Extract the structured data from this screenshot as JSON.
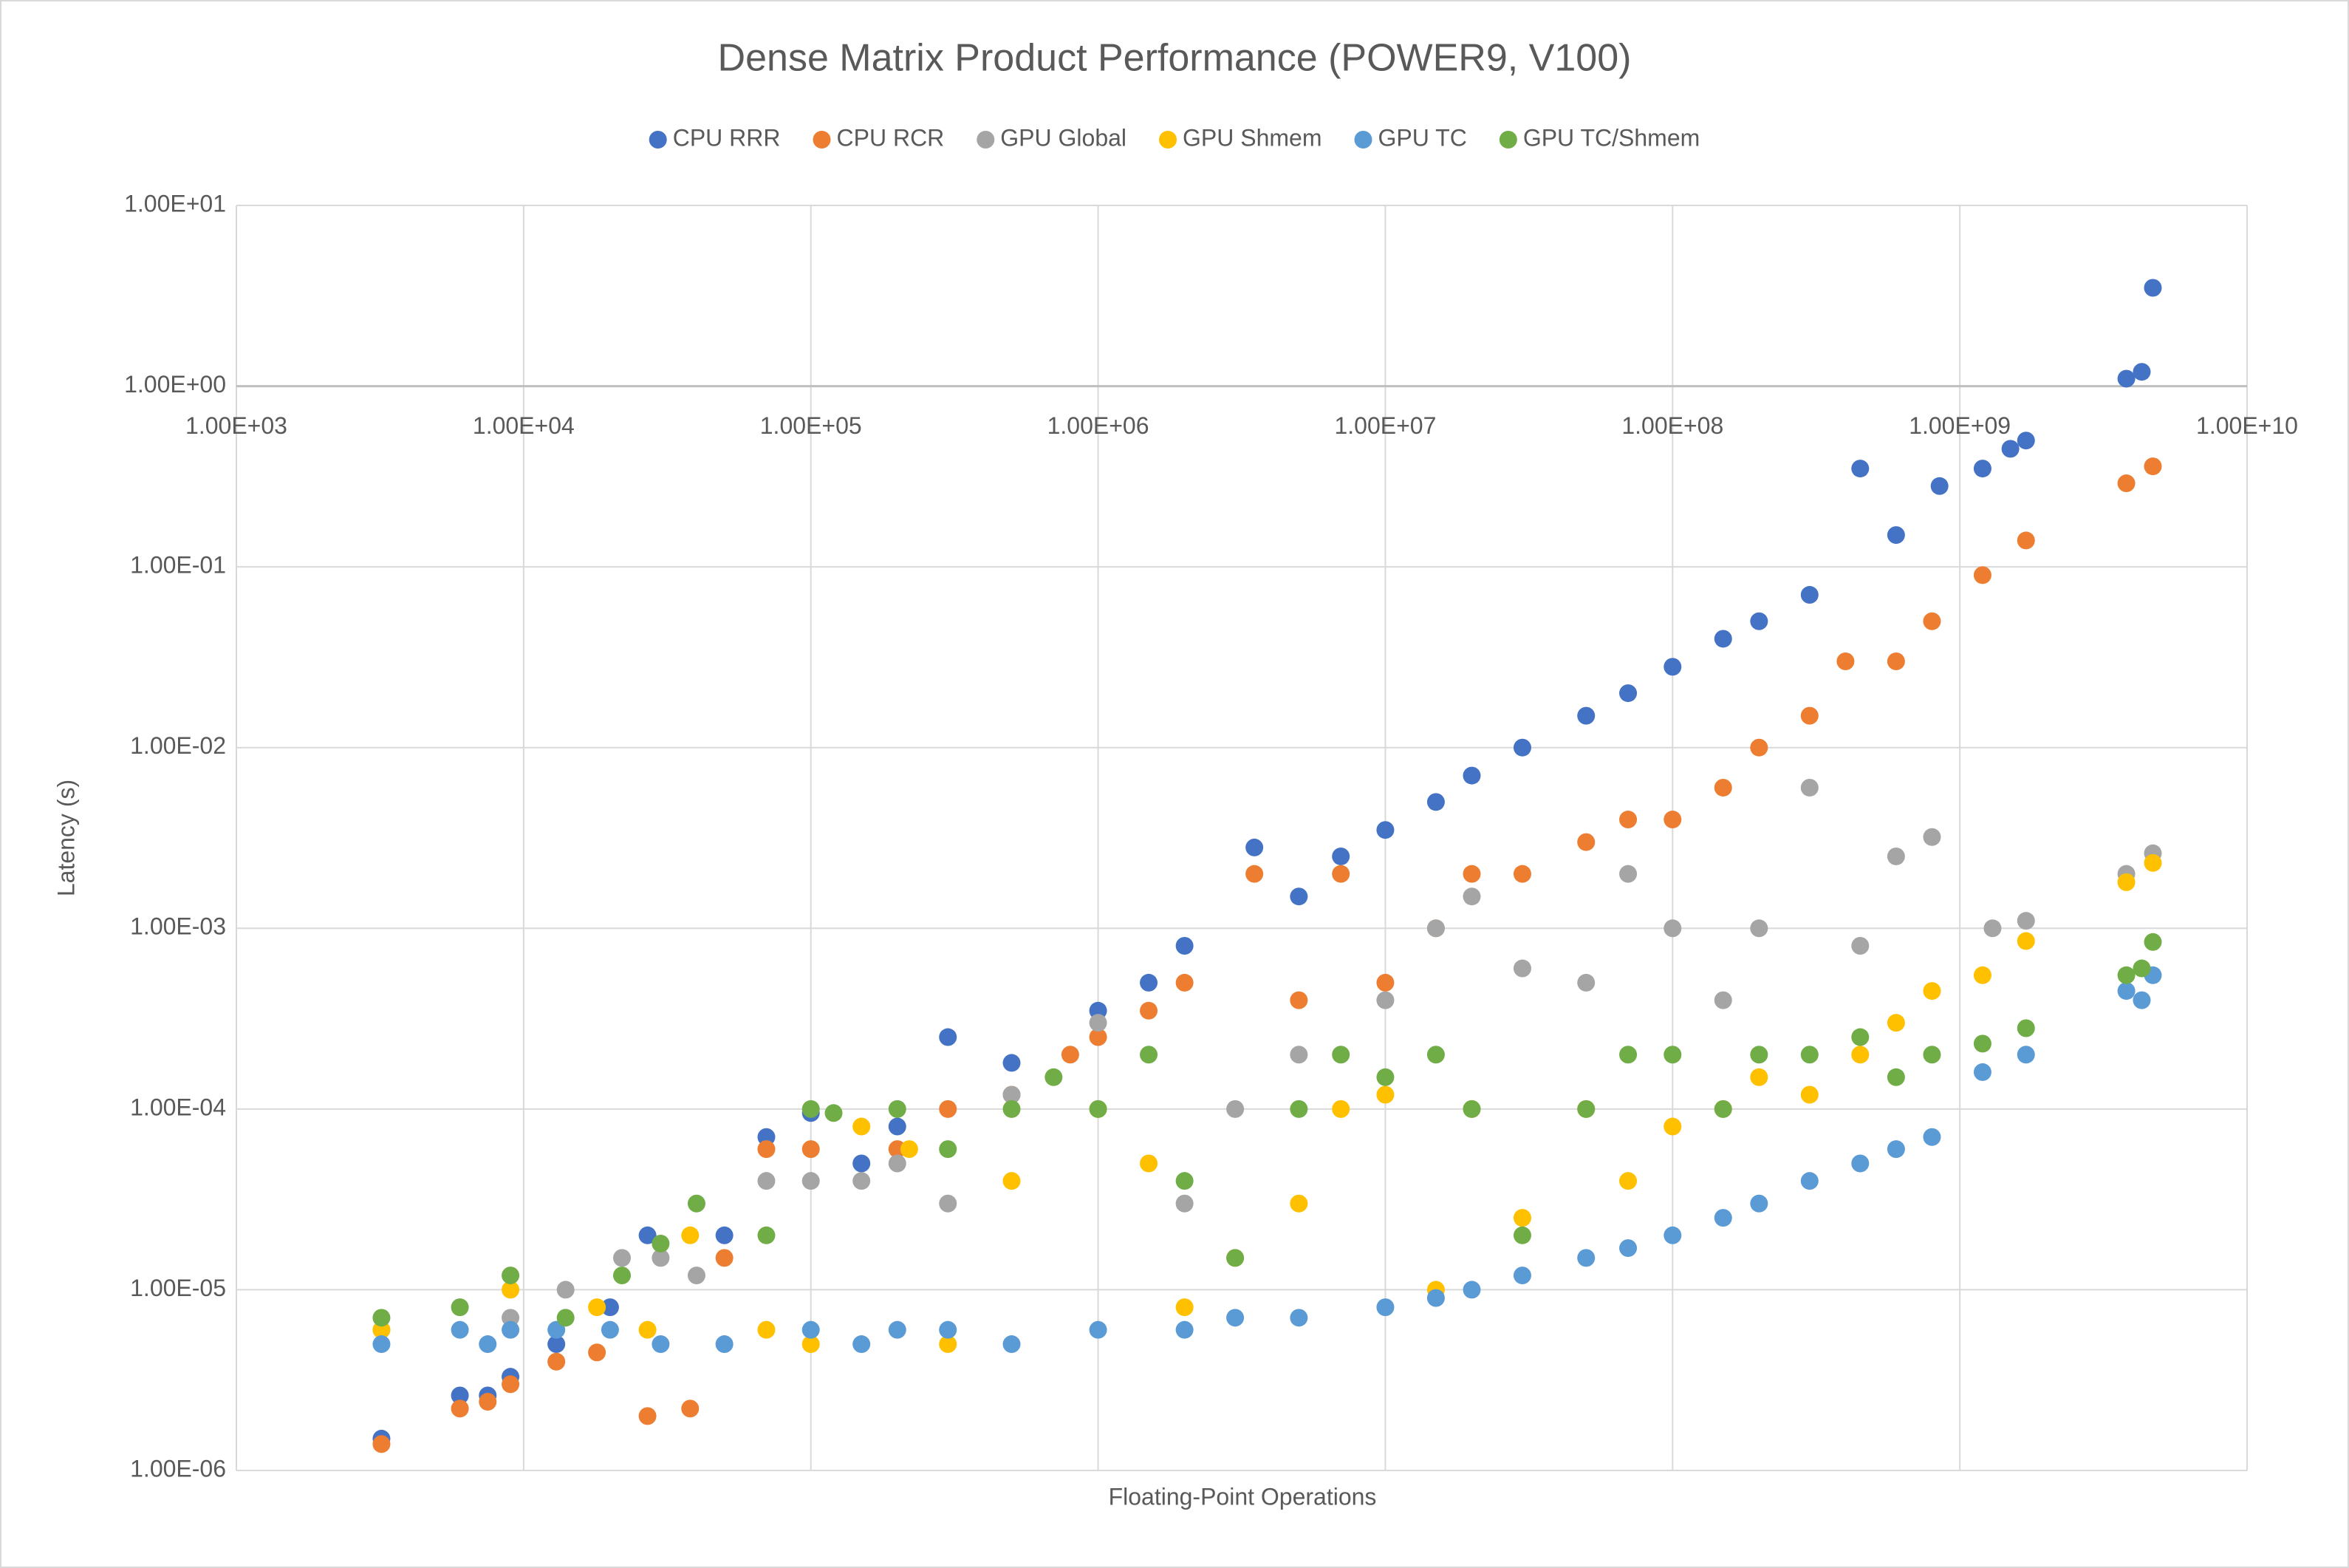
{
  "chart_data": {
    "type": "scatter",
    "title": "Dense Matrix Product Performance (POWER9, V100)",
    "x_label": "Floating-Point Operations",
    "y_label": "Latency (s)",
    "x_log": true,
    "y_log": true,
    "grid": true,
    "legend": "top",
    "x_axis_crosses_y": 1,
    "xlim": [
      1000,
      10000000000
    ],
    "ylim": [
      1e-06,
      10
    ],
    "xticks": [
      {
        "value": 1000,
        "label": "1.00E+03"
      },
      {
        "value": 10000,
        "label": "1.00E+04"
      },
      {
        "value": 100000,
        "label": "1.00E+05"
      },
      {
        "value": 1000000,
        "label": "1.00E+06"
      },
      {
        "value": 10000000,
        "label": "1.00E+07"
      },
      {
        "value": 100000000,
        "label": "1.00E+08"
      },
      {
        "value": 1000000000,
        "label": "1.00E+09"
      },
      {
        "value": 10000000000,
        "label": "1.00E+10"
      }
    ],
    "yticks": [
      {
        "value": 1e-06,
        "label": "1.00E-06"
      },
      {
        "value": 1e-05,
        "label": "1.00E-05"
      },
      {
        "value": 0.0001,
        "label": "1.00E-04"
      },
      {
        "value": 0.001,
        "label": "1.00E-03"
      },
      {
        "value": 0.01,
        "label": "1.00E-02"
      },
      {
        "value": 0.1,
        "label": "1.00E-01"
      },
      {
        "value": 1,
        "label": "1.00E+00"
      },
      {
        "value": 10,
        "label": "1.00E+01"
      }
    ],
    "series": [
      {
        "name": "CPU RRR",
        "color": "#4472c4",
        "x": [
          3200.0,
          6000.0,
          7500.0,
          9000.0,
          13000.0,
          20000.0,
          27000.0,
          50000.0,
          70000.0,
          100000.0,
          150000.0,
          200000.0,
          300000.0,
          500000.0,
          1000000.0,
          1500000.0,
          2000000.0,
          3500000.0,
          5000000.0,
          7000000.0,
          10000000.0,
          15000000.0,
          20000000.0,
          30000000.0,
          50000000.0,
          70000000.0,
          100000000.0,
          150000000.0,
          200000000.0,
          300000000.0,
          450000000.0,
          600000000.0,
          850000000.0,
          1200000000.0,
          1500000000.0,
          1700000000.0,
          3800000000.0,
          4300000000.0,
          4700000000.0
        ],
        "values": [
          1.5e-06,
          2.6e-06,
          2.6e-06,
          3.3e-06,
          5e-06,
          8e-06,
          2e-05,
          2e-05,
          7e-05,
          9.5e-05,
          5e-05,
          8e-05,
          0.00025,
          0.00018,
          0.00035,
          0.0005,
          0.0008,
          0.0028,
          0.0015,
          0.0025,
          0.0035,
          0.005,
          0.007,
          0.01,
          0.015,
          0.02,
          0.028,
          0.04,
          0.05,
          0.07,
          0.35,
          0.15,
          0.28,
          0.35,
          0.45,
          0.5,
          1.1,
          1.2,
          3.5
        ]
      },
      {
        "name": "CPU RCR",
        "color": "#ed7d31",
        "x": [
          3200.0,
          6000.0,
          7500.0,
          9000.0,
          13000.0,
          18000.0,
          27000.0,
          38000.0,
          50000.0,
          70000.0,
          100000.0,
          200000.0,
          300000.0,
          500000.0,
          800000.0,
          1000000.0,
          1500000.0,
          2000000.0,
          3500000.0,
          5000000.0,
          7000000.0,
          10000000.0,
          15000000.0,
          20000000.0,
          30000000.0,
          50000000.0,
          70000000.0,
          100000000.0,
          150000000.0,
          200000000.0,
          300000000.0,
          400000000.0,
          600000000.0,
          800000000.0,
          1200000000.0,
          1700000000.0,
          3800000000.0,
          4700000000.0
        ],
        "values": [
          1.4e-06,
          2.2e-06,
          2.4e-06,
          3e-06,
          4e-06,
          4.5e-06,
          2e-06,
          2.2e-06,
          1.5e-05,
          6e-05,
          6e-05,
          6e-05,
          0.0001,
          0.00012,
          0.0002,
          0.00025,
          0.00035,
          0.0005,
          0.002,
          0.0004,
          0.002,
          0.0005,
          0.001,
          0.002,
          0.002,
          0.003,
          0.004,
          0.004,
          0.006,
          0.01,
          0.015,
          0.03,
          0.03,
          0.05,
          0.09,
          0.14,
          0.29,
          0.36
        ]
      },
      {
        "name": "GPU Global",
        "color": "#a5a5a5",
        "x": [
          3200.0,
          9000.0,
          14000.0,
          22000.0,
          30000.0,
          40000.0,
          70000.0,
          100000.0,
          150000.0,
          200000.0,
          300000.0,
          500000.0,
          1000000.0,
          2000000.0,
          3000000.0,
          5000000.0,
          10000000.0,
          15000000.0,
          20000000.0,
          30000000.0,
          50000000.0,
          70000000.0,
          100000000.0,
          150000000.0,
          200000000.0,
          300000000.0,
          450000000.0,
          600000000.0,
          800000000.0,
          1300000000.0,
          1700000000.0,
          3800000000.0,
          4700000000.0
        ],
        "values": [
          6e-06,
          7e-06,
          1e-05,
          1.5e-05,
          1.5e-05,
          1.2e-05,
          4e-05,
          4e-05,
          4e-05,
          5e-05,
          3e-05,
          0.00012,
          0.0003,
          3e-05,
          0.0001,
          0.0002,
          0.0004,
          0.001,
          0.0015,
          0.0006,
          0.0005,
          0.002,
          0.001,
          0.0004,
          0.001,
          0.006,
          0.0008,
          0.0025,
          0.0032,
          0.001,
          0.0011,
          0.002,
          0.0026
        ]
      },
      {
        "name": "GPU Shmem",
        "color": "#ffc000",
        "x": [
          3200.0,
          9000.0,
          18000.0,
          27000.0,
          38000.0,
          70000.0,
          100000.0,
          150000.0,
          220000.0,
          300000.0,
          500000.0,
          1000000.0,
          1500000.0,
          2000000.0,
          3000000.0,
          5000000.0,
          7000000.0,
          10000000.0,
          15000000.0,
          20000000.0,
          30000000.0,
          50000000.0,
          70000000.0,
          100000000.0,
          150000000.0,
          200000000.0,
          300000000.0,
          450000000.0,
          600000000.0,
          800000000.0,
          1200000000.0,
          1700000000.0,
          3800000000.0,
          4700000000.0
        ],
        "values": [
          6e-06,
          1e-05,
          8e-06,
          6e-06,
          2e-05,
          6e-06,
          5e-06,
          8e-05,
          6e-05,
          5e-06,
          4e-05,
          0.0001,
          5e-05,
          8e-06,
          1.5e-05,
          3e-05,
          0.0001,
          0.00012,
          1e-05,
          0.0001,
          2.5e-05,
          0.0001,
          4e-05,
          8e-05,
          0.0001,
          0.00015,
          0.00012,
          0.0002,
          0.0003,
          0.00045,
          0.00055,
          0.00085,
          0.0018,
          0.0023
        ]
      },
      {
        "name": "GPU TC",
        "color": "#5b9bd5",
        "x": [
          3200.0,
          6000.0,
          7500.0,
          9000.0,
          13000.0,
          20000.0,
          30000.0,
          50000.0,
          100000.0,
          150000.0,
          200000.0,
          300000.0,
          500000.0,
          1000000.0,
          2000000.0,
          3000000.0,
          5000000.0,
          10000000.0,
          15000000.0,
          20000000.0,
          30000000.0,
          50000000.0,
          70000000.0,
          100000000.0,
          150000000.0,
          200000000.0,
          300000000.0,
          450000000.0,
          600000000.0,
          800000000.0,
          1200000000.0,
          1700000000.0,
          3800000000.0,
          4300000000.0,
          4700000000.0
        ],
        "values": [
          5e-06,
          6e-06,
          5e-06,
          6e-06,
          6e-06,
          6e-06,
          5e-06,
          5e-06,
          6e-06,
          5e-06,
          6e-06,
          6e-06,
          5e-06,
          6e-06,
          6e-06,
          7e-06,
          7e-06,
          8e-06,
          9e-06,
          1e-05,
          1.2e-05,
          1.5e-05,
          1.7e-05,
          2e-05,
          2.5e-05,
          3e-05,
          4e-05,
          5e-05,
          6e-05,
          7e-05,
          0.00016,
          0.0002,
          0.00045,
          0.0004,
          0.00055
        ]
      },
      {
        "name": "GPU TC/Shmem",
        "color": "#70ad47",
        "x": [
          3200.0,
          6000.0,
          9000.0,
          14000.0,
          22000.0,
          30000.0,
          40000.0,
          70000.0,
          100000.0,
          120000.0,
          200000.0,
          300000.0,
          500000.0,
          700000.0,
          1000000.0,
          1500000.0,
          2000000.0,
          3000000.0,
          5000000.0,
          7000000.0,
          10000000.0,
          15000000.0,
          20000000.0,
          30000000.0,
          50000000.0,
          70000000.0,
          100000000.0,
          150000000.0,
          200000000.0,
          300000000.0,
          450000000.0,
          600000000.0,
          800000000.0,
          1200000000.0,
          1700000000.0,
          3800000000.0,
          4300000000.0,
          4700000000.0
        ],
        "values": [
          7e-06,
          8e-06,
          1.2e-05,
          7e-06,
          1.2e-05,
          1.8e-05,
          3e-05,
          2e-05,
          0.0001,
          9.5e-05,
          0.0001,
          6e-05,
          0.0001,
          0.00015,
          0.0001,
          0.0002,
          4e-05,
          1.5e-05,
          0.0001,
          0.0002,
          0.00015,
          0.0002,
          0.0001,
          2e-05,
          0.0001,
          0.0002,
          0.0002,
          0.0001,
          0.0002,
          0.0002,
          0.00025,
          0.00015,
          0.0002,
          0.00023,
          0.00028,
          0.00055,
          0.0006,
          0.00084
        ]
      }
    ]
  }
}
